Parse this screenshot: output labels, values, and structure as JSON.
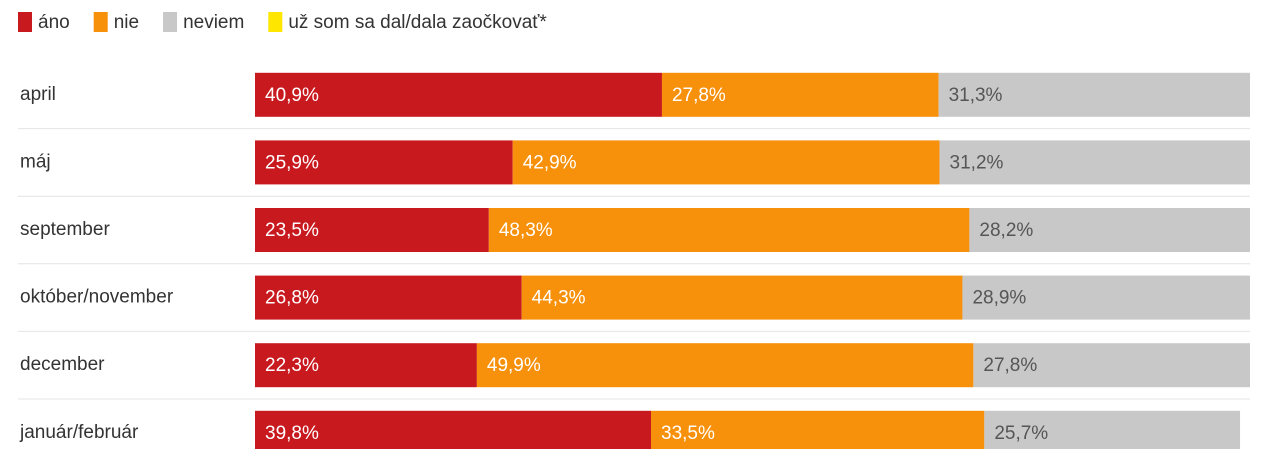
{
  "chart_data": {
    "type": "stacked-bar-horizontal",
    "categories": [
      "april",
      "máj",
      "september",
      "október/november",
      "december",
      "január/február"
    ],
    "series": [
      {
        "name": "áno",
        "color": "#c8191f",
        "values": [
          40.9,
          25.9,
          23.5,
          26.8,
          22.3,
          39.8
        ],
        "value_labels": [
          "40,9%",
          "25,9%",
          "23,5%",
          "26,8%",
          "22,3%",
          "39,8%"
        ]
      },
      {
        "name": "nie",
        "color": "#f7900a",
        "values": [
          27.8,
          42.9,
          48.3,
          44.3,
          49.9,
          33.5
        ],
        "value_labels": [
          "27,8%",
          "42,9%",
          "48,3%",
          "44,3%",
          "49,9%",
          "33,5%"
        ]
      },
      {
        "name": "neviem",
        "color": "#c8c8c8",
        "values": [
          31.3,
          31.2,
          28.2,
          28.9,
          27.8,
          25.7
        ],
        "value_labels": [
          "31,3%",
          "31,2%",
          "28,2%",
          "28,9%",
          "27,8%",
          "25,7%"
        ]
      },
      {
        "name": "už som sa dal/dala zaočkovať*",
        "color": "#ffe600",
        "values": [
          null,
          null,
          null,
          null,
          null,
          null
        ]
      }
    ],
    "xlim": [
      0,
      100
    ]
  }
}
